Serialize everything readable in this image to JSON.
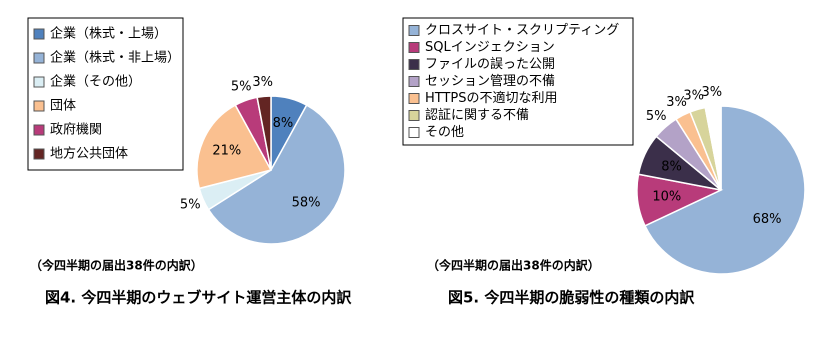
{
  "chart_data": [
    {
      "type": "pie",
      "title": "図4. 今四半期のウェブサイト運営主体の内訳",
      "subtitle": "（今四半期の届出38件の内訳）",
      "categories": [
        "企業（株式・上場）",
        "企業（株式・非上場）",
        "企業（その他）",
        "団体",
        "政府機関",
        "地方公共団体"
      ],
      "values": [
        8,
        58,
        5,
        21,
        5,
        3
      ],
      "value_labels": [
        "8%",
        "58%",
        "5%",
        "21%",
        "5%",
        "3%"
      ],
      "colors": [
        "#4f81bd",
        "#95b3d7",
        "#dbeef4",
        "#fac090",
        "#b83b7a",
        "#632523"
      ]
    },
    {
      "type": "pie",
      "title": "図5. 今四半期の脆弱性の種類の内訳",
      "subtitle": "（今四半期の届出38件の内訳）",
      "categories": [
        "クロスサイト・スクリプティング",
        "SQLインジェクション",
        "ファイルの誤った公開",
        "セッション管理の不備",
        "HTTPSの不適切な利用",
        "認証に関する不備",
        "その他"
      ],
      "values": [
        68,
        10,
        8,
        5,
        3,
        3,
        3
      ],
      "value_labels": [
        "68%",
        "10%",
        "8%",
        "5%",
        "3%",
        "3%",
        "3%"
      ],
      "colors": [
        "#95b3d7",
        "#b83b7a",
        "#3b2f4a",
        "#b3a2c7",
        "#fac090",
        "#d7d49b",
        "#ffffff"
      ]
    }
  ]
}
